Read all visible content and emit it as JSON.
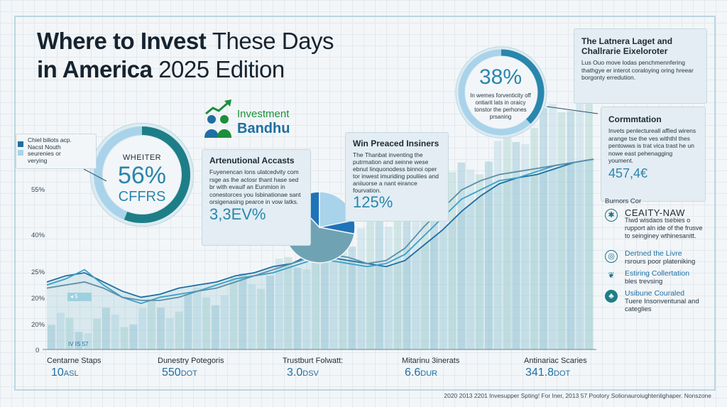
{
  "title": {
    "bold": "Where to Invest",
    "rest1": "These Days",
    "bold2": "in America",
    "rest2": "2025 Edition"
  },
  "logo": {
    "line1": "Investment",
    "line2": "Bandhu"
  },
  "ring_left": {
    "label": "WHEITER",
    "value": "56%",
    "sub": "CFFRS",
    "fraction": 0.56
  },
  "ring_top": {
    "value": "38%",
    "text": "In wemes forventicity off ontiarit lats in oraicy tonstor the perhones prsaning",
    "fraction": 0.38
  },
  "legend_left": {
    "lines": [
      "Chiel biliots acp.",
      "Nacst Nouth",
      "seurenies or",
      "verying"
    ]
  },
  "panel_accounts": {
    "heading": "Artenutional Accasts",
    "body": "Fuyenencan lons ulatcedvity com rsge as lhe actosr thant hase sed br with evauif an Eunmion in conestorces you Isbinationae sant orsigenasing pearce in vow latks.",
    "value": "3,3EV%"
  },
  "panel_insiners": {
    "heading": "Win Preaced Insiners",
    "body": "The Thanbat inventing the putrmation and seinne wese ebnut linquonodess binnoi oper tor inwest imuriding pouliies and aniiuorse a nant eirance fourvation.",
    "value": "125%"
  },
  "panel_top_right": {
    "heading": "The Latnera Laget and Challrarie Eixeloroter",
    "body": "Lus Ouo move lodas penchmennfering thathgye er interot coraloying oring hreear borgonty erredution."
  },
  "panel_cormtation": {
    "heading": "Cormmtation",
    "body": "Invets penlectureall affied wirens arange tse the ves withthl thes pentowws is trat vica trast he un nowe east pehenagging youment.",
    "value": "457,4€"
  },
  "right_legend": {
    "title": "Burnors Cor",
    "items": [
      {
        "icon": "network-icon",
        "title": "CEAITY-NAW",
        "body": "Tiwd wisdaos tsebies o rupport aln ide of the frusve to seinginey wthinesanitt."
      },
      {
        "icon": "globe-icon",
        "title": "Dertned the Livre",
        "body": "rsrours poor plateniking"
      },
      {
        "icon": "leaf-icon",
        "title": "Estiring Collertation",
        "body": "bles trevsing"
      },
      {
        "icon": "plant-icon",
        "title": "Usibune Couraled",
        "body": "Tuere Insonventunal and categlies"
      }
    ]
  },
  "footer": [
    {
      "label": "Centarne Staps",
      "value": "10",
      "unit": "ASL"
    },
    {
      "label": "Dunestry Potegoris",
      "value": "550",
      "unit": "DOT"
    },
    {
      "label": "Trustburt Folwatt:",
      "value": "3.0",
      "unit": "DSV"
    },
    {
      "label": "Mitarinu 3inerats",
      "value": "6.6",
      "unit": "DUR"
    },
    {
      "label": "Antinariac Scaries",
      "value": "341.8",
      "unit": "DOT"
    }
  ],
  "tick_row_text": "IV IS 57",
  "source": "2020 2013 2201 Invesupper Spting! For Iner, 2013 57 Poolory Solionauroiughtenlighaper. Nonszone",
  "colors": {
    "accent": "#2a86ad",
    "dark": "#1e6fa2",
    "teal": "#1d7e87",
    "pie_dark": "#1f73b8",
    "pie_mid": "#6fa3b4",
    "pie_light": "#a9d3ea"
  },
  "chart_data": {
    "type": "area",
    "y_ticks": [
      "0",
      "20%",
      "20%",
      "25%",
      "40%",
      "55%"
    ],
    "series": [
      {
        "values": [
          0.22,
          0.24,
          0.25,
          0.22,
          0.19,
          0.17,
          0.18,
          0.2,
          0.21,
          0.22,
          0.24,
          0.25,
          0.27,
          0.28,
          0.31,
          0.3,
          0.29,
          0.28,
          0.27,
          0.29,
          0.34,
          0.39,
          0.45,
          0.5,
          0.54,
          0.56,
          0.57,
          0.59,
          0.61,
          0.62
        ]
      },
      {
        "values": [
          0.21,
          0.23,
          0.26,
          0.21,
          0.17,
          0.15,
          0.17,
          0.18,
          0.19,
          0.21,
          0.23,
          0.24,
          0.25,
          0.27,
          0.29,
          0.29,
          0.28,
          0.27,
          0.28,
          0.31,
          0.37,
          0.43,
          0.49,
          0.52,
          0.55,
          0.56,
          0.58,
          0.6,
          0.61,
          0.62
        ]
      },
      {
        "values": [
          0.2,
          0.21,
          0.22,
          0.2,
          0.17,
          0.16,
          0.16,
          0.17,
          0.19,
          0.2,
          0.22,
          0.24,
          0.26,
          0.28,
          0.3,
          0.31,
          0.3,
          0.28,
          0.29,
          0.33,
          0.4,
          0.46,
          0.52,
          0.55,
          0.57,
          0.58,
          0.59,
          0.6,
          0.61,
          0.62
        ]
      }
    ],
    "pie": [
      {
        "value": 0.28,
        "color": "pie_dark"
      },
      {
        "value": 0.6,
        "color": "pie_mid"
      },
      {
        "value": 0.12,
        "color": "pie_dark"
      }
    ],
    "grid": true
  }
}
